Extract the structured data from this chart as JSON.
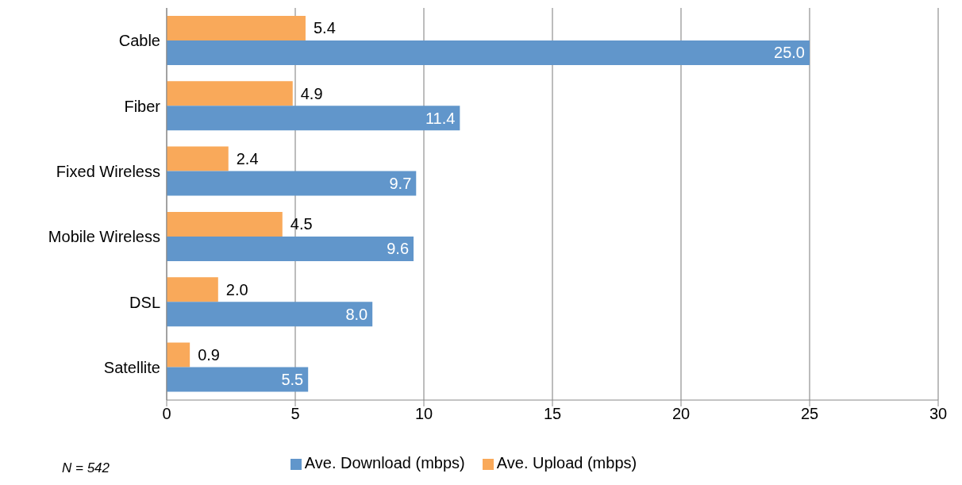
{
  "chart_data": {
    "type": "bar",
    "orientation": "horizontal",
    "categories": [
      "Cable",
      "Fiber",
      "Fixed Wireless",
      "Mobile Wireless",
      "DSL",
      "Satellite"
    ],
    "series": [
      {
        "name": "Ave. Upload (mbps)",
        "color": "#f9a95a",
        "values": [
          5.4,
          4.9,
          2.4,
          4.5,
          2.0,
          0.9
        ],
        "value_labels": [
          "5.4",
          "4.9",
          "2.4",
          "4.5",
          "2.0",
          "0.9"
        ]
      },
      {
        "name": "Ave. Download (mbps)",
        "color": "#6196cb",
        "values": [
          25.0,
          11.4,
          9.7,
          9.6,
          8.0,
          5.5
        ],
        "value_labels": [
          "25.0",
          "11.4",
          "9.7",
          "9.6",
          "8.0",
          "5.5"
        ]
      }
    ],
    "xlim": [
      0,
      30
    ],
    "xticks": [
      0,
      5,
      10,
      15,
      20,
      25,
      30
    ],
    "grid": "x",
    "legend": "bottom",
    "annotations": [
      "N = 542"
    ]
  }
}
